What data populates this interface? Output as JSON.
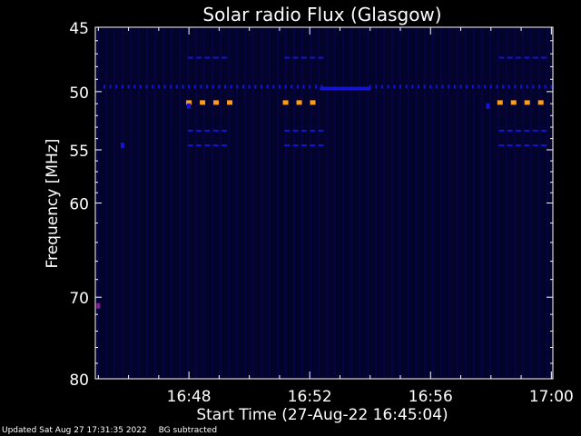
{
  "chart_data": {
    "type": "heatmap",
    "title": "Solar radio Flux (Glasgow)",
    "xlabel": "Start Time (27-Aug-22 16:45:04)",
    "ylabel": "Frequency [MHz]",
    "x_ticks": [
      {
        "label": "16:48",
        "minutes": 3
      },
      {
        "label": "16:52",
        "minutes": 7
      },
      {
        "label": "16:56",
        "minutes": 11
      },
      {
        "label": "17:00",
        "minutes": 15
      }
    ],
    "xlim_minutes": [
      -0.1,
      15.05
    ],
    "y_ticks": [
      45,
      50,
      55,
      60,
      70,
      80
    ],
    "ylim": [
      45,
      80
    ],
    "y_scale": "log",
    "colors": {
      "background": "#000000",
      "plot_bg": "#03032b",
      "axis": "#ffffff",
      "high": "#ff9d1a",
      "medium": "#1414d2",
      "low": "#0a0a70",
      "peak": "#8a1a9a"
    },
    "features": {
      "continuous_band": {
        "freq": 49.6,
        "segments": [
          [
            0.2,
            7.4
          ],
          [
            9.0,
            15.0
          ]
        ],
        "intensity": "medium"
      },
      "band_hump": {
        "freq": 49.75,
        "range": [
          7.4,
          9.0
        ],
        "intensity": "medium"
      },
      "bursts": [
        {
          "range": [
            3.0,
            4.4
          ],
          "freqs": [
            47.3,
            50.9,
            53.3,
            54.6
          ],
          "strong_freq": 50.9
        },
        {
          "range": [
            6.2,
            7.4
          ],
          "freqs": [
            47.3,
            50.9,
            53.3,
            54.6
          ],
          "strong_freq": 50.9
        },
        {
          "range": [
            13.3,
            15.0
          ],
          "freqs": [
            47.3,
            50.9,
            53.3,
            54.6
          ],
          "strong_freq": 50.9
        }
      ],
      "spots": [
        {
          "minutes": 0.8,
          "freq": 54.6,
          "intensity": "medium"
        },
        {
          "minutes": 0.0,
          "freq": 71.0,
          "intensity": "peak"
        },
        {
          "minutes": 3.0,
          "freq": 51.2,
          "intensity": "medium"
        },
        {
          "minutes": 12.9,
          "freq": 51.2,
          "intensity": "medium"
        }
      ]
    }
  },
  "footer": {
    "updated": "Updated Sat Aug 27 17:31:35 2022",
    "bg_note": "BG subtracted"
  }
}
